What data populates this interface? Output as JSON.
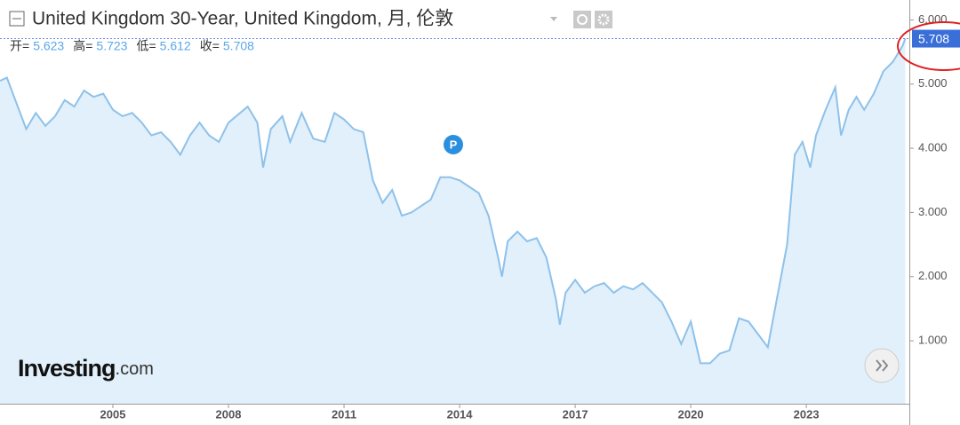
{
  "chart_data": {
    "type": "area",
    "title": "United Kingdom 30-Year, United Kingdom, 月, 伦敦",
    "ohlc": [
      {
        "label": "开=",
        "value": 5.623
      },
      {
        "label": "高=",
        "value": 5.723
      },
      {
        "label": "低=",
        "value": 5.612
      },
      {
        "label": "收=",
        "value": 5.708
      }
    ],
    "last_price": {
      "value": 5.708,
      "label": "5.708"
    },
    "event_marker": "P",
    "logo": [
      "Investing",
      ".com"
    ],
    "color": "#8ec1ea",
    "fill": "#e1f0fa",
    "x": [
      2002.07,
      2002.25,
      2002.5,
      2002.75,
      2003.0,
      2003.25,
      2003.5,
      2003.75,
      2004.0,
      2004.25,
      2004.5,
      2004.75,
      2005.0,
      2005.25,
      2005.5,
      2005.75,
      2006.0,
      2006.25,
      2006.5,
      2006.75,
      2007.0,
      2007.25,
      2007.5,
      2007.75,
      2008.0,
      2008.5,
      2008.75,
      2008.9,
      2009.1,
      2009.4,
      2009.6,
      2009.9,
      2010.2,
      2010.5,
      2010.75,
      2011.0,
      2011.25,
      2011.5,
      2011.75,
      2012.0,
      2012.25,
      2012.5,
      2012.75,
      2013.0,
      2013.25,
      2013.5,
      2013.75,
      2014.0,
      2014.25,
      2014.5,
      2014.75,
      2015.0,
      2015.1,
      2015.25,
      2015.5,
      2015.75,
      2016.0,
      2016.25,
      2016.5,
      2016.6,
      2016.75,
      2017.0,
      2017.25,
      2017.5,
      2017.75,
      2018.0,
      2018.25,
      2018.5,
      2018.75,
      2019.0,
      2019.25,
      2019.5,
      2019.75,
      2020.0,
      2020.25,
      2020.5,
      2020.75,
      2021.0,
      2021.25,
      2021.5,
      2021.75,
      2022.0,
      2022.25,
      2022.5,
      2022.7,
      2022.9,
      2023.1,
      2023.25,
      2023.5,
      2023.75,
      2023.9,
      2024.1,
      2024.3,
      2024.5,
      2024.75,
      2025.0,
      2025.25,
      2025.5,
      2025.57
    ],
    "values": [
      5.05,
      5.1,
      4.7,
      4.3,
      4.55,
      4.35,
      4.5,
      4.75,
      4.65,
      4.9,
      4.8,
      4.85,
      4.6,
      4.5,
      4.55,
      4.4,
      4.2,
      4.25,
      4.1,
      3.9,
      4.2,
      4.4,
      4.2,
      4.1,
      4.4,
      4.65,
      4.4,
      3.7,
      4.3,
      4.5,
      4.1,
      4.55,
      4.15,
      4.1,
      4.55,
      4.45,
      4.3,
      4.25,
      3.5,
      3.15,
      3.35,
      2.95,
      3.0,
      3.1,
      3.2,
      3.55,
      3.55,
      3.5,
      3.4,
      3.3,
      2.95,
      2.3,
      2.0,
      2.55,
      2.7,
      2.55,
      2.6,
      2.3,
      1.65,
      1.25,
      1.75,
      1.95,
      1.75,
      1.85,
      1.9,
      1.75,
      1.85,
      1.8,
      1.9,
      1.75,
      1.6,
      1.3,
      0.95,
      1.3,
      0.65,
      0.65,
      0.8,
      0.85,
      1.35,
      1.3,
      1.1,
      0.9,
      1.7,
      2.5,
      3.9,
      4.1,
      3.7,
      4.2,
      4.6,
      4.95,
      4.2,
      4.6,
      4.8,
      4.6,
      4.85,
      5.2,
      5.35,
      5.6,
      5.708
    ],
    "xlim": [
      2002.07,
      2025.65
    ],
    "xticks": [
      2005,
      2008,
      2011,
      2014,
      2017,
      2020,
      2023
    ],
    "ylim": [
      0.02,
      6.31
    ],
    "yticks": [
      {
        "value": 1,
        "label": "1.000"
      },
      {
        "value": 2,
        "label": "2.000"
      },
      {
        "value": 3,
        "label": "3.000"
      },
      {
        "value": 4,
        "label": "4.000"
      },
      {
        "value": 5,
        "label": "5.000"
      },
      {
        "value": 6,
        "label": "6.000"
      }
    ]
  }
}
